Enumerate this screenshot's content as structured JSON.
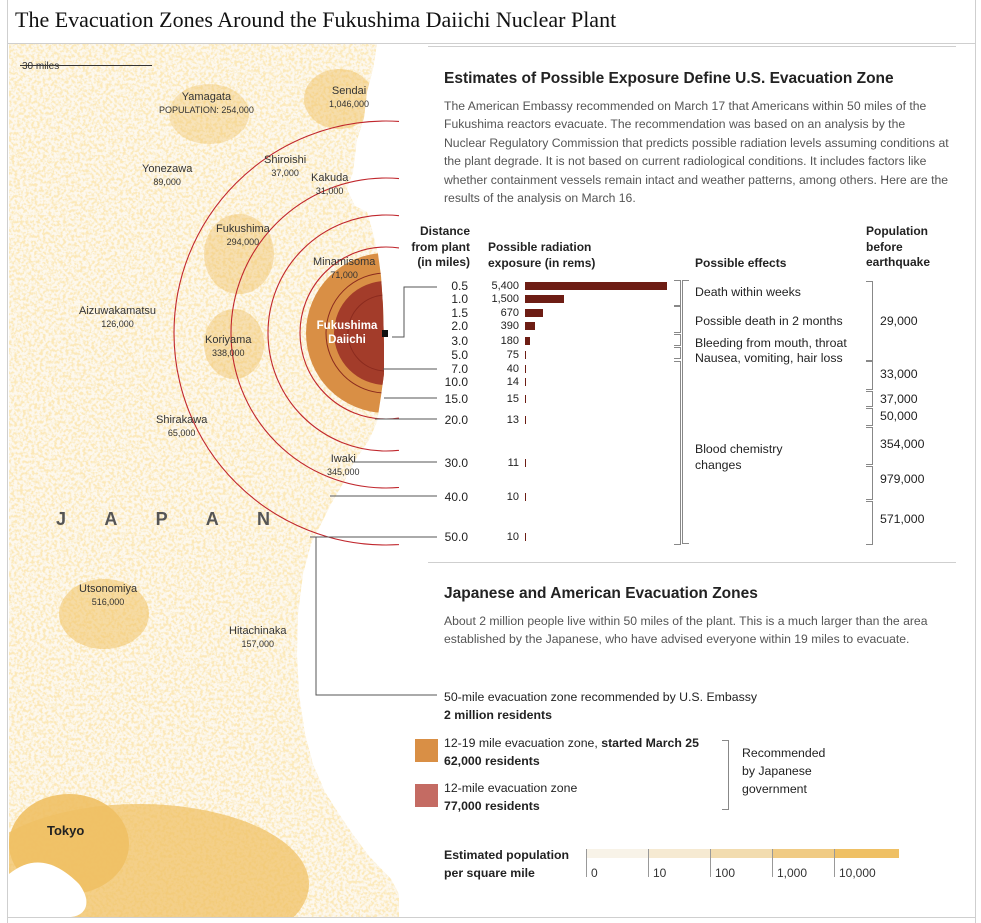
{
  "title": "The Evacuation Zones Around the Fukushima Daiichi Nuclear Plant",
  "map": {
    "scale_label": "30 miles",
    "country_label": "J A P A N",
    "plant_label_1": "Fukushima",
    "plant_label_2": "Daiichi",
    "tokyo_label": "Tokyo",
    "cities": [
      {
        "name": "Yamagata",
        "pop": "POPULATION: 254,000"
      },
      {
        "name": "Sendai",
        "pop": "1,046,000"
      },
      {
        "name": "Shiroishi",
        "pop": "37,000"
      },
      {
        "name": "Kakuda",
        "pop": "31,000"
      },
      {
        "name": "Yonezawa",
        "pop": "89,000"
      },
      {
        "name": "Fukushima",
        "pop": "294,000"
      },
      {
        "name": "Minamisoma",
        "pop": "71,000"
      },
      {
        "name": "Aizuwakamatsu",
        "pop": "126,000"
      },
      {
        "name": "Koriyama",
        "pop": "338,000"
      },
      {
        "name": "Shirakawa",
        "pop": "65,000"
      },
      {
        "name": "Iwaki",
        "pop": "345,000"
      },
      {
        "name": "Utsonomiya",
        "pop": "516,000"
      },
      {
        "name": "Hitachinaka",
        "pop": "157,000"
      }
    ]
  },
  "section1": {
    "heading": "Estimates of Possible Exposure Define U.S. Evacuation Zone",
    "text": "The American Embassy recommended on March 17 that Americans within 50 miles of the Fukushima reactors evacuate. The recommendation was based on an analysis by the Nuclear Regulatory Commission that predicts possible radiation levels assuming conditions at the plant degrade. It is not based on current radiological conditions. It includes factors like whether containment vessels remain intact and weather patterns, among others. Here are the results of the analysis on March 16."
  },
  "table": {
    "col_distance": [
      "Distance",
      "from plant",
      "(in miles)"
    ],
    "col_exposure": [
      "Possible radiation",
      "exposure (in rems)"
    ],
    "col_effects": "Possible effects",
    "col_population": [
      "Population",
      "before",
      "earthquake"
    ],
    "distances": [
      "0.5",
      "1.0",
      "1.5",
      "2.0",
      "3.0",
      "5.0",
      "7.0",
      "10.0",
      "15.0",
      "20.0",
      "30.0",
      "40.0",
      "50.0"
    ],
    "rems": [
      "5,400",
      "1,500",
      "670",
      "390",
      "180",
      "75",
      "40",
      "14",
      "15",
      "13",
      "11",
      "10",
      "10"
    ],
    "effects": [
      "Death within weeks",
      "Possible death in 2 months",
      "Bleeding from mouth, throat",
      "Nausea, vomiting, hair loss",
      "Blood chemistry",
      "changes"
    ],
    "populations": [
      "29,000",
      "33,000",
      "37,000",
      "50,000",
      "354,000",
      "979,000",
      "571,000"
    ]
  },
  "chart_data": {
    "type": "bar",
    "xlabel": "Distance from plant (in miles)",
    "ylabel": "Possible radiation exposure (in rems)",
    "categories": [
      "0.5",
      "1.0",
      "1.5",
      "2.0",
      "3.0",
      "5.0",
      "7.0",
      "10.0",
      "15.0",
      "20.0",
      "30.0",
      "40.0",
      "50.0"
    ],
    "values": [
      5400,
      1500,
      670,
      390,
      180,
      75,
      40,
      14,
      15,
      13,
      11,
      10,
      10
    ]
  },
  "section2": {
    "heading": "Japanese and American Evacuation Zones",
    "text": "About 2 million people live within 50 miles of the plant. This is a much larger than the area established by the Japanese, who have advised everyone within 19 miles to evacuate."
  },
  "legend": {
    "us_zone": "50-mile evacuation zone recommended by U.S. Embassy",
    "us_residents": "2 million residents",
    "zone_12_19_a": "12-19 mile evacuation zone, ",
    "zone_12_19_b": "started March 25",
    "zone_12_19_residents": "62,000 residents",
    "zone_12": "12-mile evacuation zone",
    "zone_12_residents": "77,000 residents",
    "recommended": [
      "Recommended",
      "by Japanese",
      "government"
    ],
    "colors": {
      "zone_12_19": "#d98f45",
      "zone_12": "#c46b63",
      "rings": "#c0272d",
      "bars": "#6d1d14"
    }
  },
  "density": {
    "label_1": "Estimated population",
    "label_2": "per square mile",
    "values": [
      "0",
      "10",
      "100",
      "1,000",
      "10,000"
    ],
    "colors": [
      "#f8f3e8",
      "#f6ead2",
      "#f2dcaf",
      "#f0cb84",
      "#efc064"
    ]
  }
}
